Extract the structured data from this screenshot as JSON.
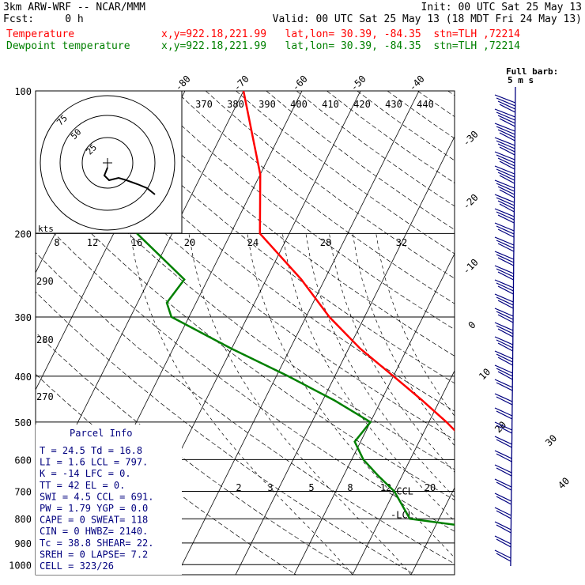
{
  "header": {
    "line1_left": "3km ARW-WRF -- NCAR/MMM",
    "line1_right": "Init: 00 UTC Sat 25 May 13",
    "line2_left": "Fcst:     0 h",
    "line2_right": "Valid: 00 UTC Sat 25 May 13 (18 MDT Fri 24 May 13)",
    "temp_label": "Temperature",
    "temp_info": "x,y=922.18,221.99   lat,lon= 30.39, -84.35  stn=TLH ,72214",
    "dew_label": "Dewpoint temperature",
    "dew_info": "x,y=922.18,221.99   lat,lon= 30.39, -84.35  stn=TLH ,72214"
  },
  "colors": {
    "temperature": "#ff0000",
    "dewpoint": "#008000",
    "barbs": "#00007f",
    "text_red": "#ff0000",
    "text_green": "#008000",
    "parcel_title": "#00007f"
  },
  "chart_data": {
    "type": "line",
    "pressure_levels": [
      100,
      200,
      300,
      400,
      500,
      600,
      700,
      800,
      900,
      1000
    ],
    "pressure_labels": [
      "100",
      "200",
      "300",
      "400",
      "500",
      "600",
      "700",
      "800",
      "900",
      "1000"
    ],
    "top_temp_labels": [
      "-80",
      "-70",
      "-60",
      "-50",
      "-40"
    ],
    "right_temp_labels": [
      "-30",
      "-20",
      "-10",
      "0",
      "10",
      "20",
      "30",
      "40"
    ],
    "theta_labels": [
      "370",
      "380",
      "390",
      "400",
      "410",
      "420",
      "430",
      "440"
    ],
    "mixing_top_labels": [
      "8",
      "12",
      "16",
      "20",
      "24",
      "28",
      "32"
    ],
    "theta_left_labels": [
      "290",
      "280",
      "270"
    ],
    "mixing_low_labels": [
      "2",
      "3",
      "5",
      "8",
      "12",
      "20"
    ],
    "level_markers": [
      {
        "label": "CCL",
        "p": 700
      },
      {
        "label": "LCL",
        "p": 785
      }
    ],
    "series": [
      {
        "name": "Temperature",
        "points": [
          [
            100,
            -70
          ],
          [
            150,
            -60
          ],
          [
            200,
            -55
          ],
          [
            250,
            -44
          ],
          [
            300,
            -36
          ],
          [
            350,
            -28
          ],
          [
            400,
            -20
          ],
          [
            450,
            -13
          ],
          [
            500,
            -7
          ],
          [
            550,
            -2
          ],
          [
            600,
            3
          ],
          [
            650,
            6
          ],
          [
            700,
            9
          ],
          [
            750,
            10
          ],
          [
            800,
            12
          ],
          [
            850,
            16
          ],
          [
            900,
            21
          ],
          [
            950,
            25
          ],
          [
            1000,
            26
          ]
        ]
      },
      {
        "name": "Dewpoint temperature",
        "points": [
          [
            100,
            -82
          ],
          [
            150,
            -84
          ],
          [
            200,
            -76
          ],
          [
            250,
            -64
          ],
          [
            280,
            -65
          ],
          [
            300,
            -63
          ],
          [
            350,
            -50
          ],
          [
            400,
            -38
          ],
          [
            450,
            -28
          ],
          [
            500,
            -20
          ],
          [
            550,
            -21
          ],
          [
            600,
            -18
          ],
          [
            650,
            -14
          ],
          [
            700,
            -10
          ],
          [
            800,
            -5
          ],
          [
            850,
            12
          ],
          [
            900,
            14
          ],
          [
            950,
            15
          ],
          [
            1000,
            18
          ]
        ]
      }
    ],
    "hodograph": {
      "rings": [
        "75",
        "50",
        "25"
      ],
      "units": "kts"
    },
    "wind_barb_legend": {
      "title": "Full barb:",
      "units": "5 m s"
    }
  },
  "parcel_info": {
    "title": "Parcel Info",
    "rows": [
      "T  =    24.5  Td =  16.8",
      "LI =     1.6  LCL =  797.",
      "K  =     -14  LFC =    0.",
      "TT =      42  EL  =    0.",
      "SWI =    4.5  CCL =  691.",
      "PW =    1.79  YGP =   0.0",
      "CAPE =     0  SWEAT=  118",
      "CIN =      0  HWBZ= 2140.",
      "Tc =    38.8  SHEAR=  22.",
      "SREH =     0  LAPSE=  7.2",
      "CELL = 323/26"
    ]
  }
}
